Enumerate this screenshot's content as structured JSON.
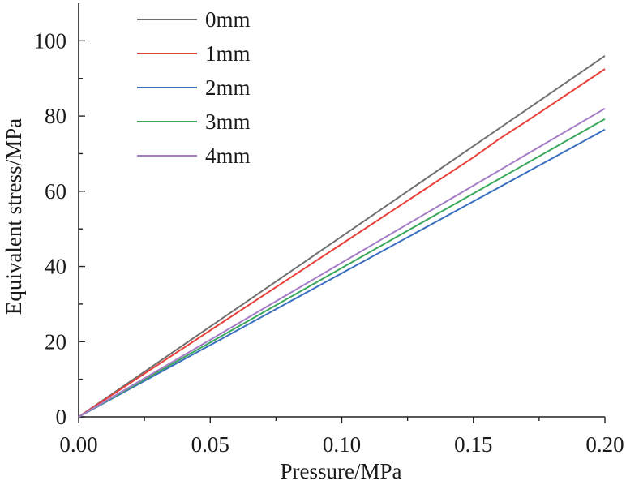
{
  "chart_data": {
    "type": "line",
    "title": "",
    "xlabel": "Pressure/MPa",
    "ylabel": "Equivalent stress/MPa",
    "xlim": [
      0,
      0.2
    ],
    "ylim": [
      0,
      110
    ],
    "x_major_ticks": [
      0.0,
      0.05,
      0.1,
      0.15,
      0.2
    ],
    "x_tick_labels": [
      "0.00",
      "0.05",
      "0.10",
      "0.15",
      "0.20"
    ],
    "x_minor_ticks": [
      0.025,
      0.075,
      0.125,
      0.175
    ],
    "y_major_ticks": [
      0,
      20,
      40,
      60,
      80,
      100
    ],
    "y_tick_labels": [
      "0",
      "20",
      "40",
      "60",
      "80",
      "100"
    ],
    "y_minor_ticks": [
      10,
      30,
      50,
      70,
      90
    ],
    "grid": false,
    "legend_position": "top-left",
    "series": [
      {
        "name": "0mm",
        "color": "#707070",
        "x": [
          0,
          0.05,
          0.1,
          0.15,
          0.2
        ],
        "y": [
          0,
          24,
          48,
          72,
          96
        ]
      },
      {
        "name": "1mm",
        "color": "#e8413b",
        "x": [
          0,
          0.05,
          0.1,
          0.15,
          0.16,
          0.17,
          0.2
        ],
        "y": [
          0,
          23,
          46,
          69,
          74,
          78.5,
          92.5
        ]
      },
      {
        "name": "2mm",
        "color": "#3b6fc0",
        "x": [
          0,
          0.05,
          0.1,
          0.15,
          0.2
        ],
        "y": [
          0,
          19.1,
          38.2,
          57.3,
          76.4
        ]
      },
      {
        "name": "3mm",
        "color": "#3aa85a",
        "x": [
          0,
          0.05,
          0.1,
          0.15,
          0.2
        ],
        "y": [
          0,
          19.8,
          39.6,
          59.4,
          79.2
        ]
      },
      {
        "name": "4mm",
        "color": "#a57cc6",
        "x": [
          0,
          0.05,
          0.1,
          0.15,
          0.2
        ],
        "y": [
          0,
          20.5,
          41,
          61.5,
          82
        ]
      }
    ]
  }
}
